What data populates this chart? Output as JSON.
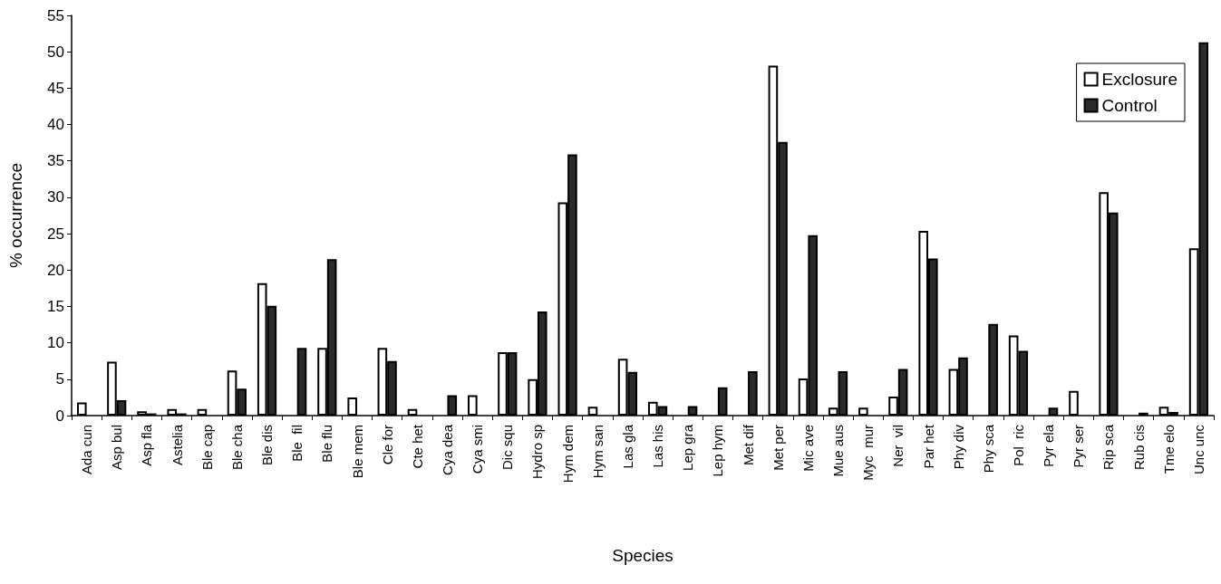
{
  "chart_data": {
    "type": "bar",
    "xlabel": "Species",
    "ylabel": "% occurrence",
    "categories": [
      "Ada cun",
      "Asp bul",
      "Asp fla",
      "Astelia",
      "Ble cap",
      "Ble cha",
      "Ble dis",
      "Ble  fil",
      "Ble flu",
      "Ble mem",
      "Cle for",
      "Cte het",
      "Cya dea",
      "Cya smi",
      "Dic squ",
      "Hydro sp",
      "Hym dem",
      "Hym san",
      "Las gla",
      "Las his",
      "Lep gra",
      "Lep hym",
      "Met dif",
      "Met per",
      "Mic ave",
      "Mue aus",
      "Myc  mur",
      "Ner  vil",
      "Par het",
      "Phy div",
      "Phy sca",
      "Pol  ric",
      "Pyr ela",
      "Pyr ser",
      "Rip sca",
      "Rub cis",
      "Tme elo",
      "Unc unc"
    ],
    "series": [
      {
        "name": "Exclosure",
        "color": "#ffffff",
        "values": [
          1.8,
          7.4,
          0.6,
          0.9,
          0.9,
          6.2,
          18.2,
          0,
          9.3,
          2.5,
          9.3,
          0.9,
          0,
          2.8,
          8.7,
          5.0,
          29.3,
          1.2,
          7.8,
          1.9,
          0,
          0,
          0,
          48.1,
          5.1,
          1.1,
          1.1,
          2.6,
          25.4,
          6.4,
          0,
          11.0,
          0,
          3.4,
          30.7,
          0,
          1.2,
          23.0
        ]
      },
      {
        "name": "Control",
        "color": "#2b2b2b",
        "values": [
          0,
          2.1,
          0.3,
          0.3,
          0,
          3.7,
          15.1,
          9.3,
          21.5,
          0,
          7.5,
          0,
          2.8,
          0,
          8.7,
          14.3,
          35.9,
          0,
          6.0,
          1.3,
          1.3,
          3.9,
          6.1,
          37.6,
          24.8,
          6.1,
          0,
          6.4,
          21.6,
          8.0,
          12.6,
          8.9,
          1.1,
          0,
          27.9,
          0.4,
          0.5,
          51.3
        ]
      }
    ],
    "ylim": [
      0,
      55
    ],
    "yticks": [
      0,
      5,
      10,
      15,
      20,
      25,
      30,
      35,
      40,
      45,
      50,
      55
    ],
    "grid": false,
    "legend": "top right"
  }
}
